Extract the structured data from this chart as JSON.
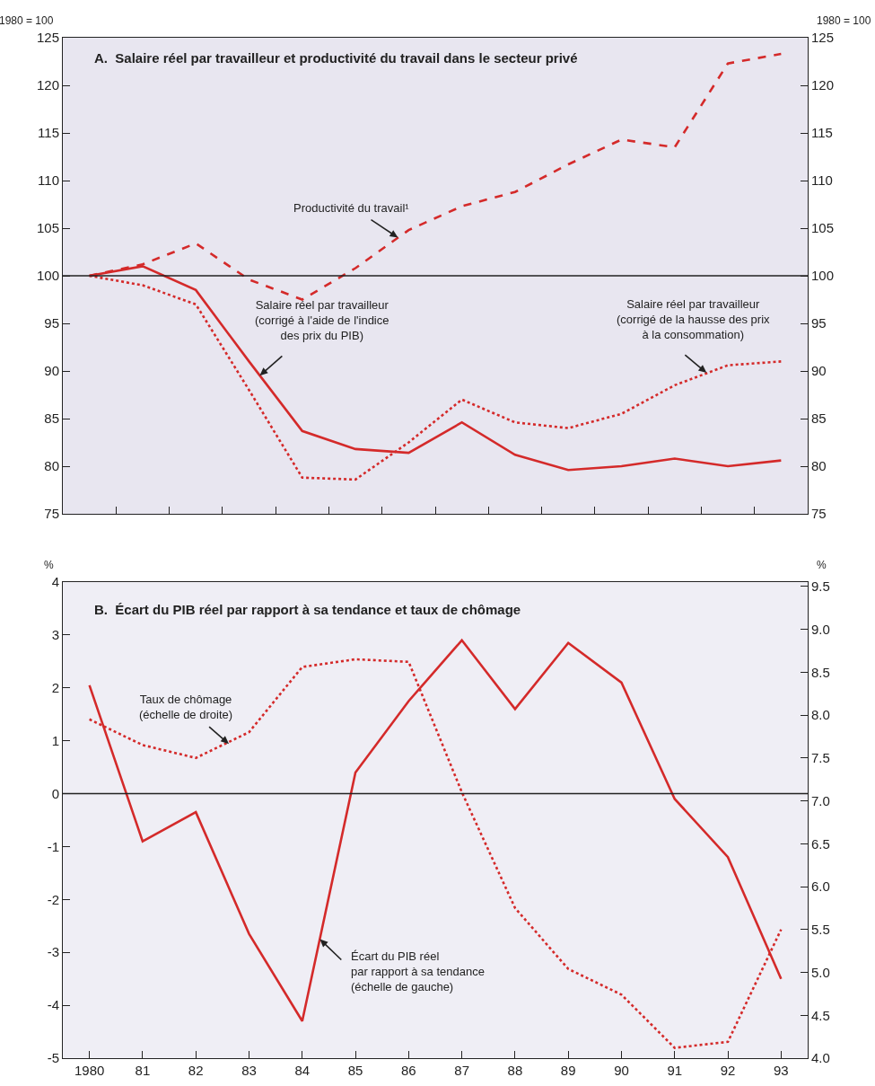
{
  "chart_data": [
    {
      "type": "line",
      "title": "A.  Salaire réel par travailleur et productivité du travail dans le secteur privé",
      "ylabel": "1980 = 100",
      "y2label": "1980 = 100",
      "x": [
        1980,
        1981,
        1982,
        1983,
        1984,
        1985,
        1986,
        1987,
        1988,
        1989,
        1990,
        1991,
        1992,
        1993
      ],
      "series": [
        {
          "color": "#d42a2a",
          "line_style": "dashed",
          "values": [
            100,
            101.2,
            103.4,
            99.6,
            97.5,
            100.8,
            104.8,
            107.3,
            108.8,
            111.7,
            114.3,
            113.5,
            122.3,
            123.3
          ]
        },
        {
          "color": "#d42a2a",
          "line_style": "solid",
          "values": [
            100,
            101,
            98.5,
            91,
            83.7,
            81.8,
            81.4,
            84.6,
            81.2,
            79.6,
            80,
            80.8,
            80,
            80.6
          ]
        },
        {
          "color": "#d42a2a",
          "line_style": "dotted",
          "values": [
            100,
            99,
            97,
            88,
            78.8,
            78.6,
            82.5,
            87,
            84.6,
            84,
            85.5,
            88.5,
            90.6,
            91
          ]
        }
      ],
      "xlim": [
        1979.5,
        1993.5
      ],
      "xticks": [
        {
          "value": 1980.5,
          "label": null
        },
        {
          "value": 1981.5,
          "label": null
        },
        {
          "value": 1982.5,
          "label": null
        },
        {
          "value": 1983.5,
          "label": null
        },
        {
          "value": 1984.5,
          "label": null
        },
        {
          "value": 1985.5,
          "label": null
        },
        {
          "value": 1986.5,
          "label": null
        },
        {
          "value": 1987.5,
          "label": null
        },
        {
          "value": 1988.5,
          "label": null
        },
        {
          "value": 1989.5,
          "label": null
        },
        {
          "value": 1990.5,
          "label": null
        },
        {
          "value": 1991.5,
          "label": null
        },
        {
          "value": 1992.5,
          "label": null
        }
      ],
      "ylim": [
        75,
        125
      ],
      "yticks": [
        75,
        80,
        85,
        90,
        95,
        100,
        105,
        110,
        115,
        120,
        125
      ],
      "y2lim": [
        75,
        125
      ],
      "y2ticks": [
        75,
        80,
        85,
        90,
        95,
        100,
        105,
        110,
        115,
        120,
        125
      ],
      "ref_lines": [
        {
          "axis": "y",
          "value": 100,
          "color": "#222222"
        }
      ],
      "annotations": [
        {
          "text": "Productivité du travail¹",
          "x": 1985.8,
          "y": 104
        },
        {
          "text": "Salaire réel par travailleur\n(corrigé à l'aide de l'indice\ndes prix du PIB)",
          "x": 1983.2,
          "y": 89.5
        },
        {
          "text": "Salaire réel par travailleur\n(corrigé de la hausse des prix\nà la consommation)",
          "x": 1991.6,
          "y": 89.8
        }
      ],
      "grid": false,
      "tick_labels": "y"
    },
    {
      "type": "line",
      "title": "B.  Écart du PIB réel par rapport à sa tendance et taux de chômage",
      "ylabel": "%",
      "y2label": "%",
      "x": [
        1980,
        1981,
        1982,
        1983,
        1984,
        1985,
        1986,
        1987,
        1988,
        1989,
        1990,
        1991,
        1992,
        1993
      ],
      "series": [
        {
          "color": "#d42a2a",
          "line_style": "solid",
          "values": [
            2.05,
            -0.9,
            -0.35,
            -2.65,
            -4.3,
            0.4,
            1.75,
            2.9,
            1.6,
            2.85,
            2.1,
            -0.1,
            -1.2,
            -3.5
          ]
        },
        {
          "color": "#d42a2a",
          "line_style": "dotted",
          "axis": "y2",
          "values": [
            7.95,
            7.65,
            7.5,
            7.8,
            8.56,
            8.65,
            8.62,
            7.1,
            5.75,
            5.04,
            4.74,
            4.12,
            4.19,
            5.5
          ]
        }
      ],
      "xlim": [
        1979.5,
        1993.5
      ],
      "xticks": [
        {
          "value": 1980,
          "label": "1980"
        },
        {
          "value": 1981,
          "label": "81"
        },
        {
          "value": 1982,
          "label": "82"
        },
        {
          "value": 1983,
          "label": "83"
        },
        {
          "value": 1984,
          "label": "84"
        },
        {
          "value": 1985,
          "label": "85"
        },
        {
          "value": 1986,
          "label": "86"
        },
        {
          "value": 1987,
          "label": "87"
        },
        {
          "value": 1988,
          "label": "88"
        },
        {
          "value": 1989,
          "label": "89"
        },
        {
          "value": 1990,
          "label": "90"
        },
        {
          "value": 1991,
          "label": "91"
        },
        {
          "value": 1992,
          "label": "92"
        },
        {
          "value": 1993,
          "label": "93"
        }
      ],
      "ylim": [
        -5,
        4
      ],
      "yticks": [
        -5,
        -4,
        -3,
        -2,
        -1,
        0,
        1,
        2,
        3,
        4
      ],
      "y2lim": [
        4,
        9.55
      ],
      "y2ticks": [
        {
          "value": 4,
          "label": "4.0"
        },
        {
          "value": 4.5,
          "label": "4.5"
        },
        {
          "value": 5,
          "label": "5.0"
        },
        {
          "value": 5.5,
          "label": "5.5"
        },
        {
          "value": 6,
          "label": "6.0"
        },
        {
          "value": 6.5,
          "label": "6.5"
        },
        {
          "value": 7,
          "label": "7.0"
        },
        {
          "value": 7.5,
          "label": "7.5"
        },
        {
          "value": 8,
          "label": "8.0"
        },
        {
          "value": 8.5,
          "label": "8.5"
        },
        {
          "value": 9,
          "label": "9.0"
        },
        {
          "value": 9.5,
          "label": "9.5"
        }
      ],
      "ref_lines": [
        {
          "axis": "y",
          "value": 0,
          "color": "#222222"
        }
      ],
      "annotations": [
        "Taux de chômage\n(échelle de droite)",
        {
          "text": "Écart du PIB réel\npar rapport à sa tendance\n(échelle de gauche)",
          "x": 1984.33,
          "y": -2.75
        }
      ],
      "grid": false
    }
  ]
}
